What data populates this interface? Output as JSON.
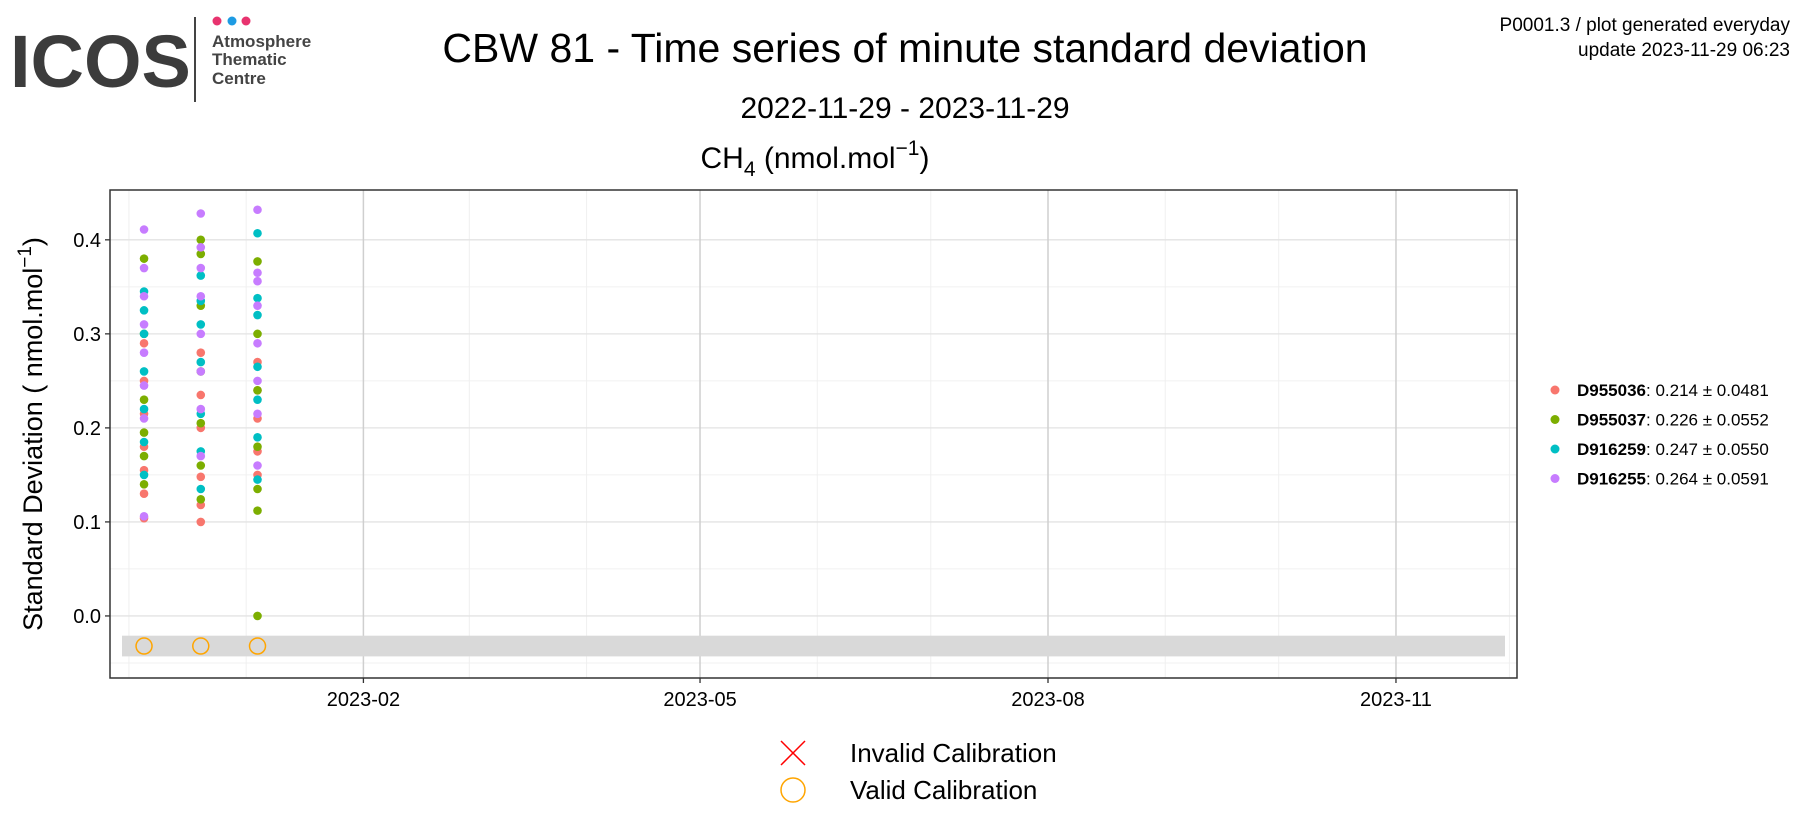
{
  "logo": {
    "text": "ICOS",
    "lines": [
      "Atmosphere",
      "Thematic",
      "Centre"
    ]
  },
  "header": {
    "info": "P0001.3 / plot generated everyday",
    "update": "update  2023-11-29 06:23"
  },
  "chart_data": {
    "type": "scatter",
    "title": "CBW 81 - Time series of minute standard deviation",
    "subtitle": "2022-11-29 - 2023-11-29",
    "panel_title": {
      "base": "CH",
      "sub": "4",
      "unit": " (nmol.mol",
      "sup": "−1",
      "close": ")"
    },
    "y_label": {
      "text": "Standard Deviation ( nmol.mol",
      "sup": "−1",
      "close": ")"
    },
    "xlim": [
      "2022-11-26",
      "2023-12-03"
    ],
    "xticks": [
      {
        "value": "2023-02-01",
        "label": "2023-02"
      },
      {
        "value": "2023-05-01",
        "label": "2023-05"
      },
      {
        "value": "2023-08-01",
        "label": "2023-08"
      },
      {
        "value": "2023-11-01",
        "label": "2023-11"
      }
    ],
    "ylim": [
      -0.066,
      0.453
    ],
    "yticks": [
      {
        "value": 0,
        "label": "0.0"
      },
      0.1,
      0.2,
      0.3,
      0.4
    ],
    "grid": true,
    "legend_position": "right",
    "series": [
      {
        "name": "D955036",
        "stats": ": 0.214 ± 0.0481",
        "color": "#F8766D",
        "x": [
          "2022-12-05",
          "2022-12-05",
          "2022-12-05",
          "2022-12-05",
          "2022-12-05",
          "2022-12-05",
          "2022-12-05",
          "2022-12-20",
          "2022-12-20",
          "2022-12-20",
          "2022-12-20",
          "2022-12-20",
          "2022-12-20",
          "2023-01-04",
          "2023-01-04",
          "2023-01-04",
          "2023-01-04",
          "2023-01-04"
        ],
        "values": [
          0.104,
          0.13,
          0.155,
          0.18,
          0.215,
          0.25,
          0.29,
          0.1,
          0.118,
          0.148,
          0.2,
          0.235,
          0.28,
          0.15,
          0.175,
          0.21,
          0.24,
          0.27
        ]
      },
      {
        "name": "D955037",
        "stats": ": 0.226 ± 0.0552",
        "color": "#7CAE00",
        "x": [
          "2022-12-05",
          "2022-12-05",
          "2022-12-05",
          "2022-12-05",
          "2022-12-05",
          "2022-12-05",
          "2022-12-20",
          "2022-12-20",
          "2022-12-20",
          "2022-12-20",
          "2022-12-20",
          "2022-12-20",
          "2022-12-20",
          "2023-01-04",
          "2023-01-04",
          "2023-01-04",
          "2023-01-04",
          "2023-01-04",
          "2023-01-04",
          "2023-01-04"
        ],
        "values": [
          0.14,
          0.17,
          0.195,
          0.23,
          0.3,
          0.38,
          0.124,
          0.16,
          0.205,
          0.26,
          0.33,
          0.385,
          0.4,
          0.0,
          0.112,
          0.135,
          0.18,
          0.24,
          0.3,
          0.377
        ]
      },
      {
        "name": "D916259",
        "stats": ": 0.247 ± 0.0550",
        "color": "#00BFC4",
        "x": [
          "2022-12-05",
          "2022-12-05",
          "2022-12-05",
          "2022-12-05",
          "2022-12-05",
          "2022-12-05",
          "2022-12-05",
          "2022-12-20",
          "2022-12-20",
          "2022-12-20",
          "2022-12-20",
          "2022-12-20",
          "2022-12-20",
          "2022-12-20",
          "2023-01-04",
          "2023-01-04",
          "2023-01-04",
          "2023-01-04",
          "2023-01-04",
          "2023-01-04",
          "2023-01-04"
        ],
        "values": [
          0.15,
          0.185,
          0.22,
          0.26,
          0.3,
          0.325,
          0.345,
          0.135,
          0.175,
          0.215,
          0.27,
          0.31,
          0.335,
          0.362,
          0.145,
          0.19,
          0.23,
          0.265,
          0.32,
          0.338,
          0.407
        ]
      },
      {
        "name": "D916255",
        "stats": ": 0.264 ± 0.0591",
        "color": "#C77CFF",
        "x": [
          "2022-12-05",
          "2022-12-05",
          "2022-12-05",
          "2022-12-05",
          "2022-12-05",
          "2022-12-05",
          "2022-12-05",
          "2022-12-05",
          "2022-12-20",
          "2022-12-20",
          "2022-12-20",
          "2022-12-20",
          "2022-12-20",
          "2022-12-20",
          "2022-12-20",
          "2022-12-20",
          "2023-01-04",
          "2023-01-04",
          "2023-01-04",
          "2023-01-04",
          "2023-01-04",
          "2023-01-04",
          "2023-01-04",
          "2023-01-04"
        ],
        "values": [
          0.106,
          0.21,
          0.245,
          0.28,
          0.31,
          0.34,
          0.37,
          0.411,
          0.17,
          0.22,
          0.26,
          0.3,
          0.34,
          0.37,
          0.392,
          0.428,
          0.16,
          0.215,
          0.25,
          0.29,
          0.33,
          0.356,
          0.365,
          0.432
        ]
      }
    ],
    "calibration_band": [
      -0.043,
      -0.021
    ],
    "calibrations": {
      "invalid": {
        "name": "Invalid Calibration",
        "color": "#FF0000"
      },
      "valid": {
        "name": "Valid Calibration",
        "color": "#FFA500",
        "x": [
          "2022-12-05",
          "2022-12-20",
          "2023-01-04"
        ],
        "values": [
          -0.032,
          -0.032,
          -0.032
        ]
      }
    }
  }
}
